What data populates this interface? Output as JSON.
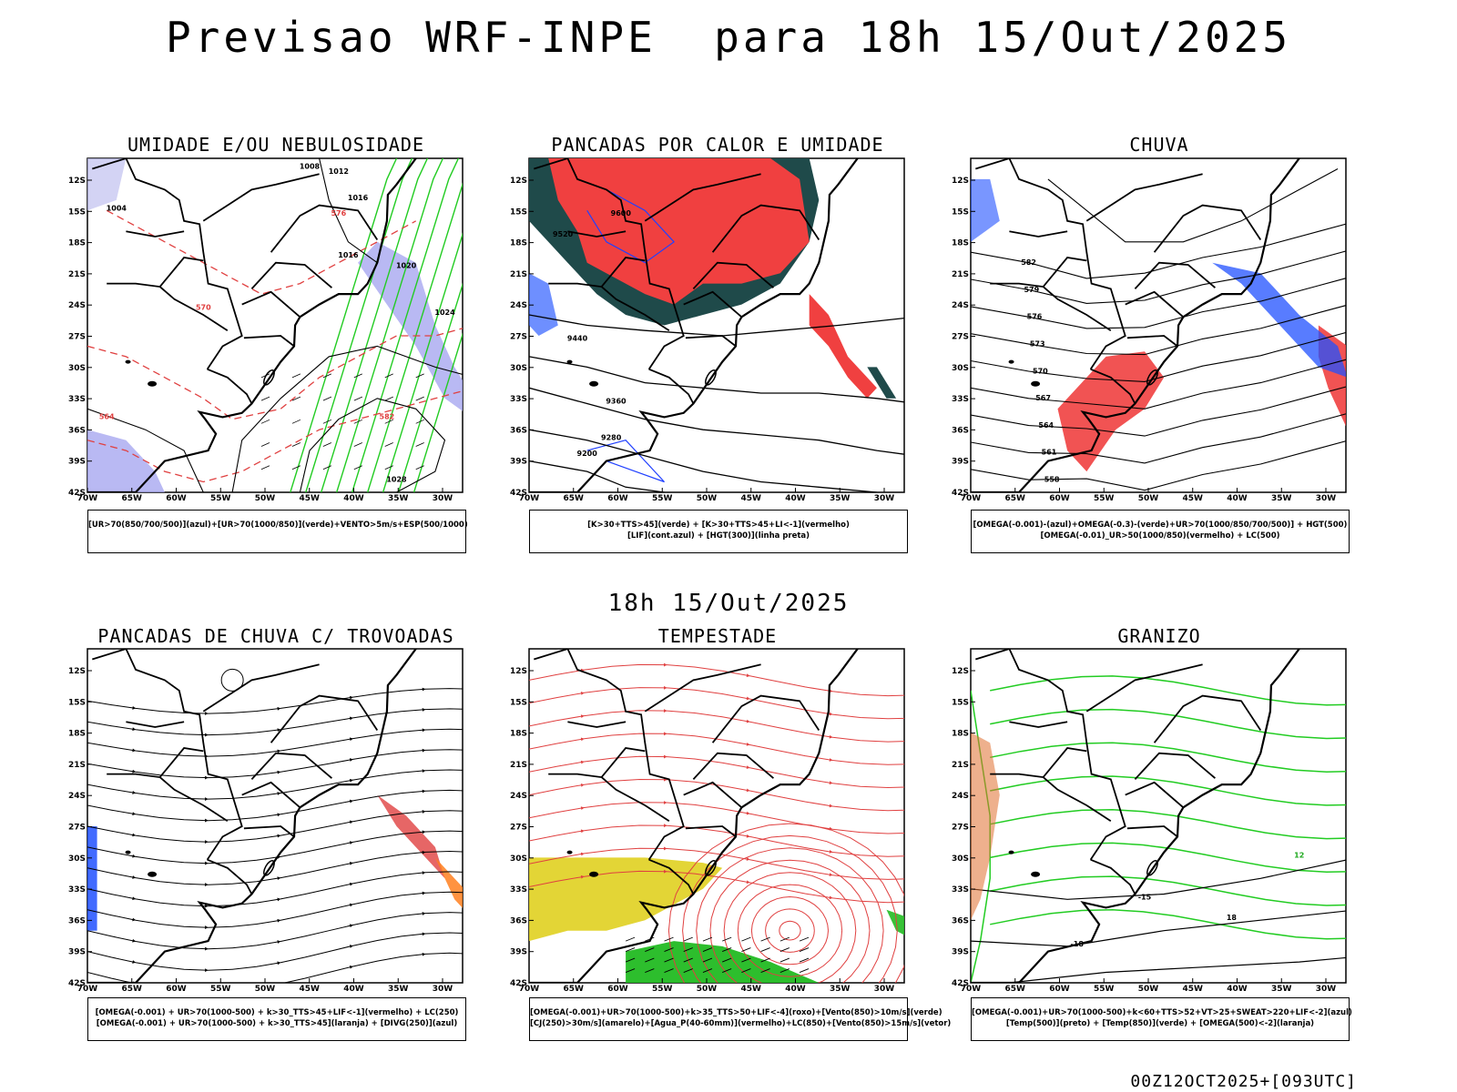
{
  "header": {
    "title": "Previsao WRF-INPE  para 18h 15/Out/2025",
    "subtitle": "18h 15/Out/2025",
    "footer": "00Z12OCT2025+[093UTC]"
  },
  "axes": {
    "lat_labels": [
      "12S",
      "15S",
      "18S",
      "21S",
      "24S",
      "27S",
      "30S",
      "33S",
      "36S",
      "39S",
      "42S"
    ],
    "lon_labels": [
      "70W",
      "65W",
      "60W",
      "55W",
      "50W",
      "45W",
      "40W",
      "35W",
      "30W"
    ]
  },
  "panels": [
    {
      "title": "UMIDADE E/OU NEBULOSIDADE",
      "legend": [
        "[UR>70(850/700/500)](azul)+[UR>70(1000/850)](verde)+VENTO>5m/s+ESP(500/1000)"
      ],
      "contour_labels": [
        "1008",
        "1012",
        "1016",
        "1004",
        "1016",
        "1020",
        "1024",
        "1028",
        "576",
        "570",
        "564",
        "582"
      ]
    },
    {
      "title": "PANCADAS POR CALOR E UMIDADE",
      "legend": [
        "[K>30+TTS>45](verde) + [K>30+TTS>45+LI<-1](vermelho)",
        "[LIF](cont.azul) + [HGT(300)](linha preta)"
      ],
      "contour_labels": [
        "9600",
        "9520",
        "9440",
        "9360",
        "9280",
        "9200"
      ]
    },
    {
      "title": "CHUVA",
      "legend": [
        "[OMEGA(-0.001)-(azul)+OMEGA(-0.3)-(verde)+UR>70(1000/850/700/500)] + HGT(500)",
        "[OMEGA(-0.01)_UR>50(1000/850)(vermelho) + LC(500)"
      ],
      "contour_labels": [
        "582",
        "579",
        "576",
        "573",
        "570",
        "567",
        "564",
        "561",
        "558"
      ]
    },
    {
      "title": "PANCADAS DE CHUVA C/ TROVOADAS",
      "legend": [
        "[OMEGA(-0.001) + UR>70(1000-500) + k>30_TTS>45+LIF<-1](vermelho) + LC(250)",
        "[OMEGA(-0.001) + UR>70(1000-500) + k>30_TTS>45](laranja) + [DIVG(250)](azul)"
      ],
      "contour_labels": []
    },
    {
      "title": "TEMPESTADE",
      "legend": [
        "[OMEGA(-0.001)+UR>70(1000-500)+k>35_TTS>50+LIF<-4](roxo)+[Vento(850)>10m/s](verde)",
        "[CJ(250)>30m/s](amarelo)+[Agua_P(40-60mm)](vermelho)+LC(850)+[Vento(850)>15m/s](vetor)"
      ],
      "contour_labels": []
    },
    {
      "title": "GRANIZO",
      "legend": [
        "[OMEGA(-0.001)+UR>70(1000-500)+k<60+TTS>52+VT>25+SWEAT>220+LIF<-2](azul)",
        "[Temp(500)](preto) + [Temp(850)](verde) + [OMEGA(500)<-2](laranja)"
      ],
      "contour_labels": [
        "-15",
        "-18",
        "12",
        "18"
      ]
    }
  ]
}
